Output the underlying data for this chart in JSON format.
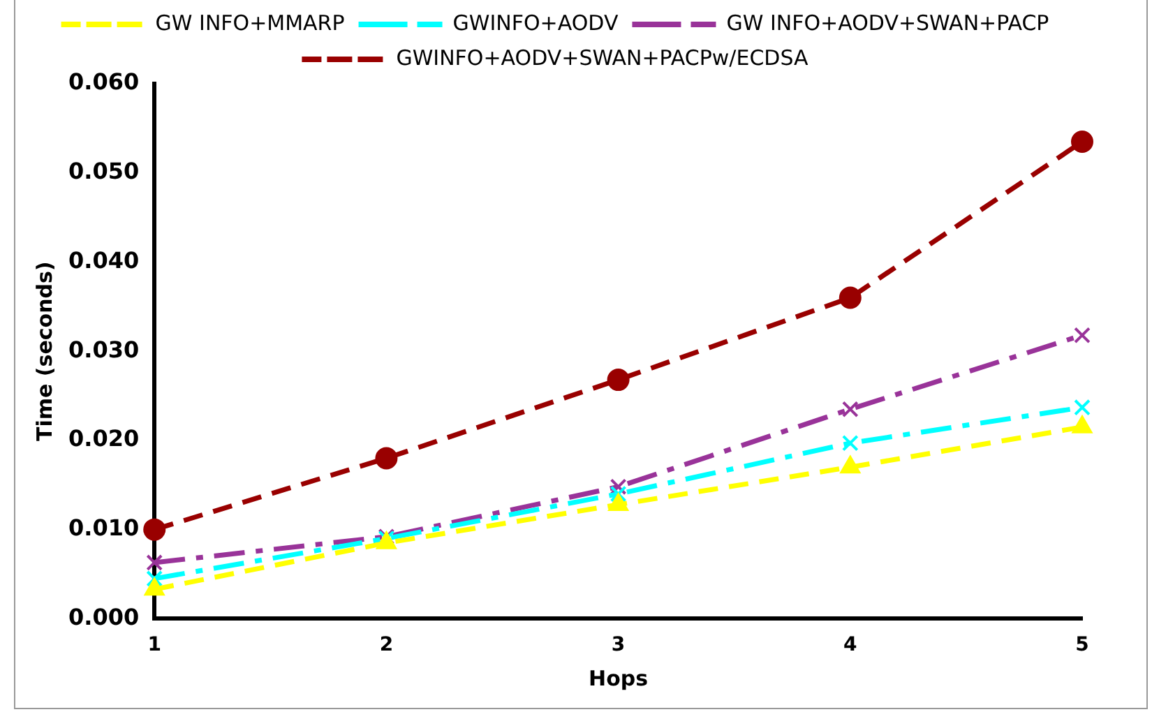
{
  "chart_data": {
    "type": "line",
    "xlabel": "Hops",
    "ylabel": "Time (seconds)",
    "categories": [
      "1",
      "2",
      "3",
      "4",
      "5"
    ],
    "ylim": [
      0,
      0.06
    ],
    "yticks": [
      {
        "value": 0,
        "label": "0.000"
      },
      {
        "value": 0.01,
        "label": "0.010"
      },
      {
        "value": 0.02,
        "label": "0.020"
      },
      {
        "value": 0.03,
        "label": "0.030"
      },
      {
        "value": 0.04,
        "label": "0.040"
      },
      {
        "value": 0.05,
        "label": "0.050"
      },
      {
        "value": 0.06,
        "label": "0.060"
      }
    ],
    "grid": false,
    "legend": "top",
    "series": [
      {
        "name": "GW INFO+MMARP",
        "color": "#ffff00",
        "marker": "triangle",
        "line_style": "dashed",
        "values": [
          0.0033,
          0.0085,
          0.0128,
          0.017,
          0.0215
        ]
      },
      {
        "name": "GWINFO+AODV",
        "color": "#00ffff",
        "marker": "cross",
        "line_style": "dashdot",
        "values": [
          0.0045,
          0.009,
          0.014,
          0.0197,
          0.0237
        ]
      },
      {
        "name": "GW INFO+AODV+SWAN+PACP",
        "color": "#993399",
        "marker": "cross",
        "line_style": "dashdot",
        "values": [
          0.0063,
          0.0092,
          0.0148,
          0.0235,
          0.0318
        ]
      },
      {
        "name": "GWINFO+AODV+SWAN+PACPw/ECDSA",
        "color": "#990000",
        "marker": "circle",
        "line_style": "dashed",
        "values": [
          0.01,
          0.018,
          0.0268,
          0.036,
          0.0535
        ]
      }
    ]
  }
}
